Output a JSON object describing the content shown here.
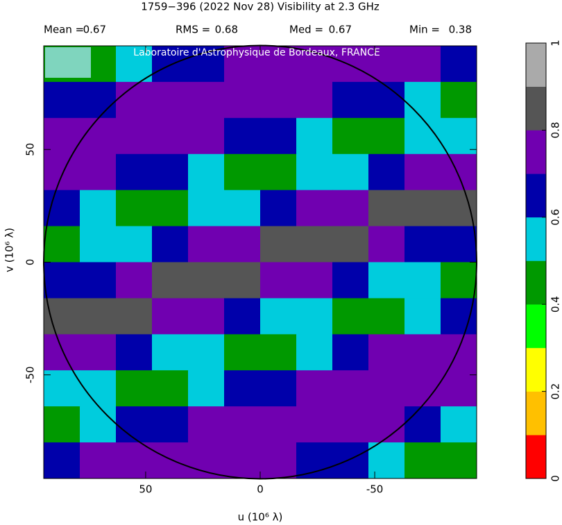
{
  "chart_data": {
    "type": "heatmap",
    "title": "1759−396  (2022 Nov 28)   Visibility at  2.3 GHz",
    "stats": [
      {
        "label": "Mean =",
        "value": 0.67
      },
      {
        "label": "RMS =",
        "value": 0.68
      },
      {
        "label": "Med =",
        "value": 0.67
      },
      {
        "label": "Min =",
        "value": 0.38
      }
    ],
    "annotation": "Laboratoire d'Astrophysique de Bordeaux, FRANCE",
    "x_label": "u  (10⁶ λ)",
    "y_label": "v  (10⁶ λ)",
    "xlim": [
      94.5,
      -94.5
    ],
    "ylim": [
      -96,
      96
    ],
    "xticks": [
      50,
      0,
      -50
    ],
    "yticks": [
      -50,
      0,
      50
    ],
    "x": [
      86.6,
      70.9,
      55.1,
      39.4,
      23.6,
      7.9,
      -7.9,
      -23.6,
      -39.4,
      -55.1,
      -70.9,
      -86.6
    ],
    "y": [
      88,
      72,
      56,
      40,
      24,
      8,
      -8,
      -24,
      -40,
      -56,
      -72,
      -88
    ],
    "z": [
      [
        0.45,
        0.45,
        0.5,
        0.6,
        0.65,
        0.7,
        0.75,
        0.75,
        0.75,
        0.75,
        0.7,
        0.65
      ],
      [
        0.6,
        0.65,
        0.7,
        0.75,
        0.75,
        0.75,
        0.75,
        0.7,
        0.65,
        0.6,
        0.5,
        0.45
      ],
      [
        0.75,
        0.75,
        0.75,
        0.75,
        0.7,
        0.65,
        0.6,
        0.5,
        0.45,
        0.45,
        0.5,
        0.55
      ],
      [
        0.75,
        0.7,
        0.65,
        0.6,
        0.5,
        0.45,
        0.45,
        0.5,
        0.55,
        0.65,
        0.7,
        0.75
      ],
      [
        0.6,
        0.5,
        0.45,
        0.45,
        0.5,
        0.55,
        0.6,
        0.7,
        0.75,
        0.8,
        0.85,
        0.8
      ],
      [
        0.45,
        0.5,
        0.55,
        0.6,
        0.7,
        0.75,
        0.8,
        0.85,
        0.8,
        0.75,
        0.65,
        0.6
      ],
      [
        0.6,
        0.65,
        0.75,
        0.8,
        0.85,
        0.8,
        0.75,
        0.7,
        0.6,
        0.55,
        0.5,
        0.45
      ],
      [
        0.8,
        0.85,
        0.8,
        0.75,
        0.7,
        0.6,
        0.55,
        0.5,
        0.45,
        0.45,
        0.55,
        0.6
      ],
      [
        0.75,
        0.7,
        0.65,
        0.55,
        0.5,
        0.45,
        0.45,
        0.55,
        0.6,
        0.7,
        0.75,
        0.75
      ],
      [
        0.55,
        0.5,
        0.45,
        0.45,
        0.5,
        0.6,
        0.65,
        0.7,
        0.75,
        0.75,
        0.75,
        0.75
      ],
      [
        0.45,
        0.5,
        0.6,
        0.65,
        0.7,
        0.75,
        0.75,
        0.75,
        0.75,
        0.7,
        0.6,
        0.55
      ],
      [
        0.65,
        0.7,
        0.75,
        0.75,
        0.75,
        0.75,
        0.7,
        0.65,
        0.6,
        0.5,
        0.45,
        0.45
      ]
    ],
    "zlim": [
      0,
      1
    ],
    "zticks": [
      0,
      0.2,
      0.4,
      0.6,
      0.8,
      1
    ],
    "colorscale": [
      "#ff0000",
      "#ffc000",
      "#ffff00",
      "#00ff00",
      "#009900",
      "#00ccdd",
      "#0000aa",
      "#7000b0",
      "#555555",
      "#aaaaaa"
    ]
  }
}
